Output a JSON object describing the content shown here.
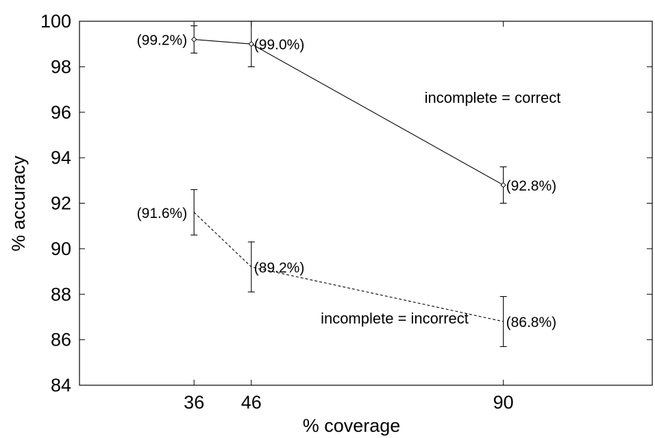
{
  "chart_data": {
    "type": "line",
    "xlabel": "% coverage",
    "ylabel": "% accuracy",
    "xlim": [
      16,
      116
    ],
    "ylim": [
      84,
      100
    ],
    "xticks": [
      36,
      46,
      90
    ],
    "yticks": [
      84,
      86,
      88,
      90,
      92,
      94,
      96,
      98,
      100
    ],
    "grid": false,
    "series": [
      {
        "name": "incomplete = correct",
        "style": "solid",
        "marker": "diamond",
        "x": [
          36,
          46,
          90
        ],
        "y": [
          99.2,
          99.0,
          92.8
        ],
        "err_low": [
          98.6,
          98.0,
          92.0
        ],
        "err_high": [
          99.8,
          100.0,
          93.6
        ],
        "labels": [
          "(99.2%)",
          "(99.0%)",
          "(92.8%)"
        ]
      },
      {
        "name": "incomplete = incorrect",
        "style": "dashed",
        "marker": "none",
        "x": [
          36,
          46,
          90
        ],
        "y": [
          91.6,
          89.2,
          86.8
        ],
        "err_low": [
          90.6,
          88.1,
          85.7
        ],
        "err_high": [
          92.6,
          90.3,
          87.9
        ],
        "labels": [
          "(91.6%)",
          "(89.2%)",
          "(86.8%)"
        ]
      }
    ]
  }
}
